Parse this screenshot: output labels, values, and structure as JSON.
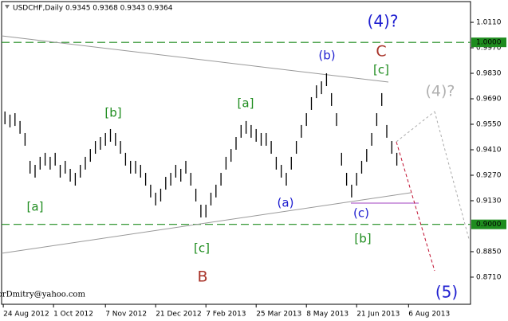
{
  "chart_data": {
    "type": "ohlc",
    "title": "USDCHF,Daily  0.9345 0.9368 0.9343 0.9364",
    "xlim": [
      0,
      280
    ],
    "ylim": [
      0.8561,
      1.0224
    ],
    "xticks": [
      {
        "value": 1,
        "label": "24 Aug 2012"
      },
      {
        "value": 31,
        "label": "1 Oct 2012"
      },
      {
        "value": 62,
        "label": "7 Nov 2012"
      },
      {
        "value": 92,
        "label": "21 Dec 2012"
      },
      {
        "value": 122,
        "label": "7 Feb 2013"
      },
      {
        "value": 152,
        "label": "25 Mar 2013"
      },
      {
        "value": 182,
        "label": "8 May 2013"
      },
      {
        "value": 212,
        "label": "21 Jun 2013"
      },
      {
        "value": 243,
        "label": "6 Aug 2013"
      }
    ],
    "yticks": [
      {
        "value": 1.011,
        "label": "1.0110"
      },
      {
        "value": 0.997,
        "label": "0.9970"
      },
      {
        "value": 0.983,
        "label": "0.9830"
      },
      {
        "value": 0.969,
        "label": "0.9690"
      },
      {
        "value": 0.955,
        "label": "0.9550"
      },
      {
        "value": 0.941,
        "label": "0.9410"
      },
      {
        "value": 0.927,
        "label": "0.9270"
      },
      {
        "value": 0.913,
        "label": "0.9130"
      },
      {
        "value": 0.885,
        "label": "0.8850"
      },
      {
        "value": 0.871,
        "label": "0.8710"
      }
    ],
    "levels": [
      {
        "value": 1.0,
        "label": "1.0000"
      },
      {
        "value": 0.9,
        "label": "0.9000"
      }
    ],
    "level_color": "#1e8c1e",
    "bar_color": "#000000",
    "x": [
      2,
      5,
      8,
      11,
      14,
      17,
      20,
      23,
      26,
      29,
      32,
      35,
      38,
      41,
      44,
      47,
      50,
      53,
      56,
      59,
      62,
      65,
      68,
      71,
      74,
      77,
      80,
      83,
      86,
      89,
      92,
      95,
      98,
      101,
      104,
      107,
      110,
      113,
      116,
      119,
      122,
      125,
      128,
      131,
      134,
      137,
      140,
      143,
      146,
      149,
      152,
      155,
      158,
      161,
      164,
      167,
      170,
      173,
      176,
      179,
      182,
      185,
      188,
      191,
      194,
      197,
      200,
      203,
      206,
      209,
      212,
      215,
      218,
      221,
      224,
      227,
      230,
      233,
      236
    ],
    "high": [
      0.962,
      0.9603,
      0.9611,
      0.9568,
      0.9502,
      0.9349,
      0.9327,
      0.9371,
      0.9393,
      0.9371,
      0.9393,
      0.9327,
      0.9349,
      0.9305,
      0.9283,
      0.9327,
      0.9371,
      0.9414,
      0.9458,
      0.948,
      0.9502,
      0.9524,
      0.9502,
      0.9458,
      0.9393,
      0.9349,
      0.9349,
      0.9327,
      0.9283,
      0.9218,
      0.9174,
      0.9196,
      0.9261,
      0.9283,
      0.9327,
      0.9305,
      0.9349,
      0.9283,
      0.9196,
      0.9108,
      0.9108,
      0.9174,
      0.9218,
      0.9283,
      0.9371,
      0.9414,
      0.948,
      0.9546,
      0.9568,
      0.9546,
      0.9524,
      0.9502,
      0.9502,
      0.9458,
      0.9371,
      0.9327,
      0.9283,
      0.9371,
      0.9458,
      0.9546,
      0.9611,
      0.9699,
      0.9764,
      0.9786,
      0.983,
      0.9721,
      0.9611,
      0.9393,
      0.9283,
      0.9218,
      0.9283,
      0.9349,
      0.9414,
      0.9502,
      0.9611,
      0.9721,
      0.9546,
      0.9458,
      0.9393
    ],
    "low": [
      0.955,
      0.9533,
      0.9541,
      0.9498,
      0.9432,
      0.9279,
      0.9257,
      0.9301,
      0.9323,
      0.9301,
      0.9323,
      0.9257,
      0.9279,
      0.9235,
      0.9213,
      0.9257,
      0.9301,
      0.9344,
      0.9388,
      0.941,
      0.9432,
      0.9454,
      0.9432,
      0.9388,
      0.9323,
      0.9279,
      0.9279,
      0.9257,
      0.9213,
      0.9148,
      0.9104,
      0.9126,
      0.9191,
      0.9213,
      0.9257,
      0.9235,
      0.9279,
      0.9213,
      0.9126,
      0.9038,
      0.9038,
      0.9104,
      0.9148,
      0.9213,
      0.9301,
      0.9344,
      0.941,
      0.9476,
      0.9498,
      0.9476,
      0.9454,
      0.9432,
      0.9432,
      0.9388,
      0.9301,
      0.9257,
      0.9213,
      0.9301,
      0.9388,
      0.9476,
      0.9541,
      0.9629,
      0.9694,
      0.9716,
      0.976,
      0.9651,
      0.9541,
      0.9323,
      0.9213,
      0.9148,
      0.9213,
      0.9279,
      0.9344,
      0.9432,
      0.9541,
      0.9651,
      0.9476,
      0.9388,
      0.9323
    ],
    "annotations": [
      {
        "text": "(4)?",
        "color": "#1f1fd0"
      },
      {
        "text": "(b)",
        "color": "#1f1fd0"
      },
      {
        "text": "C",
        "color": "#a83228"
      },
      {
        "text": "[c]",
        "color": "#1e8c1e"
      },
      {
        "text": "(4)?",
        "color": "#b0b0b0"
      },
      {
        "text": "[b]",
        "color": "#1e8c1e"
      },
      {
        "text": "[a]",
        "color": "#1e8c1e"
      },
      {
        "text": "[a]",
        "color": "#1e8c1e"
      },
      {
        "text": "(a)",
        "color": "#1f1fd0"
      },
      {
        "text": "(c)",
        "color": "#1f1fd0"
      },
      {
        "text": "[b]",
        "color": "#1e8c1e"
      },
      {
        "text": "[c]",
        "color": "#1e8c1e"
      },
      {
        "text": "B",
        "color": "#a83228"
      },
      {
        "text": "(5)",
        "color": "#1f1fd0"
      },
      {
        "text": "forDmitry@yahoo.com",
        "color": "#000000"
      }
    ]
  }
}
